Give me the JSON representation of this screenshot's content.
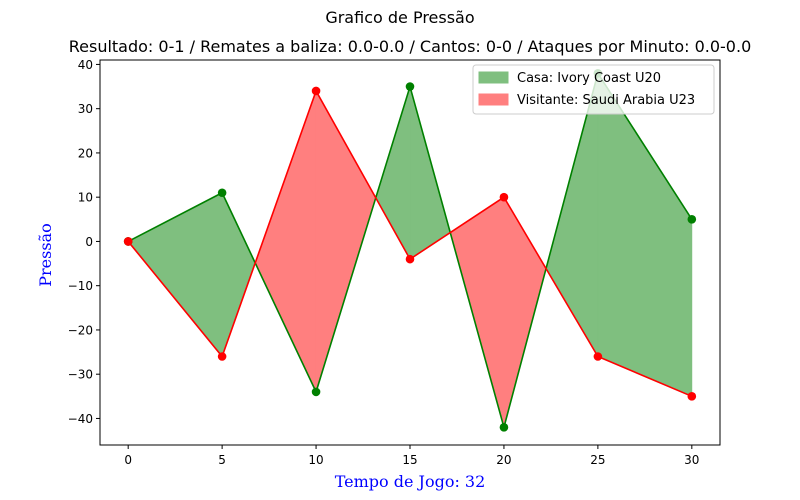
{
  "chart_data": {
    "type": "area",
    "title": "Grafico de Pressão",
    "subtitle": "Resultado: 0-1 / Remates a baliza: 0.0-0.0 / Cantos: 0-0 / Ataques por Minuto: 0.0-0.0",
    "xlabel": "Tempo de Jogo: 32",
    "ylabel": "Pressão",
    "x": [
      0,
      5,
      10,
      15,
      20,
      25,
      30
    ],
    "xlim": [
      -1.5,
      31.5
    ],
    "ylim": [
      -46,
      41
    ],
    "xticks": [
      0,
      5,
      10,
      15,
      20,
      25,
      30
    ],
    "yticks": [
      -40,
      -30,
      -20,
      -10,
      0,
      10,
      20,
      30,
      40
    ],
    "grid": false,
    "legend_position": "top-right",
    "series": [
      {
        "name": "Casa: Ivory Coast U20",
        "values": [
          0,
          11,
          -34,
          35,
          -42,
          38,
          5
        ],
        "line_color": "#008000",
        "fill_color": "#7fbf7f"
      },
      {
        "name": "Visitante: Saudi Arabia U23",
        "values": [
          0,
          -26,
          34,
          -4,
          10,
          -26,
          -35
        ],
        "line_color": "#ff0000",
        "fill_color": "#ff7f7f"
      }
    ],
    "label_color": "#0000ff"
  }
}
